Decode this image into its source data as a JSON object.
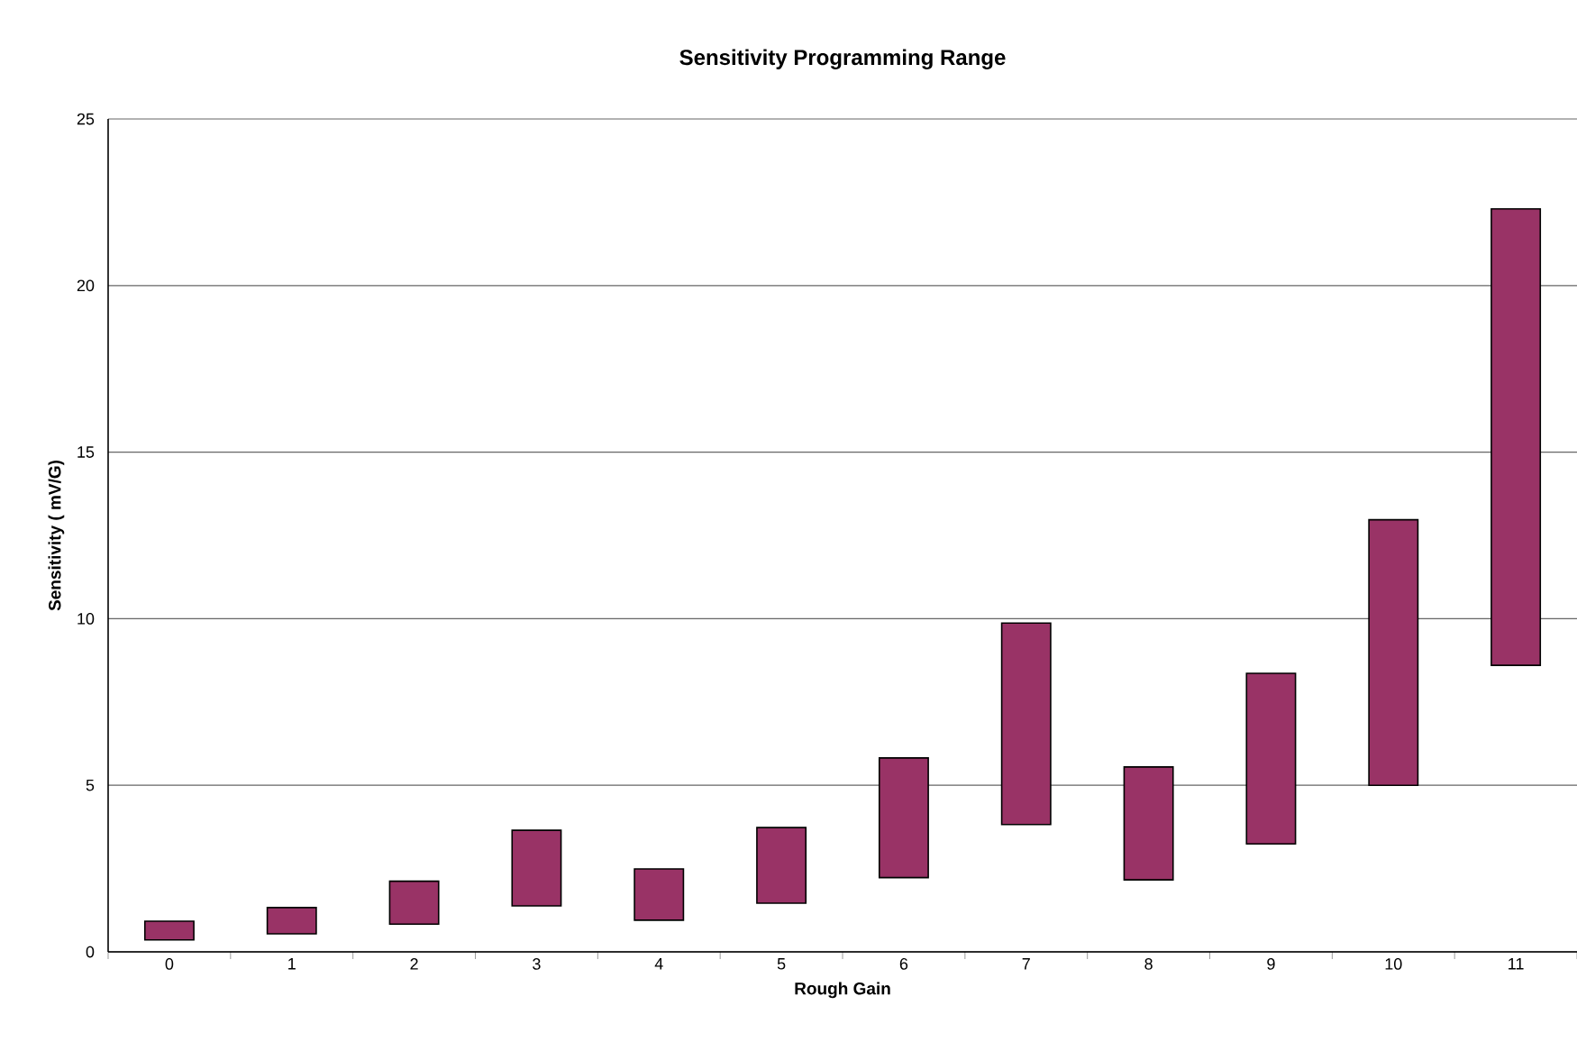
{
  "chart_data": {
    "type": "bar",
    "title": "Sensitivity Programming Range",
    "xlabel": "Rough Gain",
    "ylabel": "Sensitivity ( mV/G)",
    "categories": [
      "0",
      "1",
      "2",
      "3",
      "4",
      "5",
      "6",
      "7",
      "8",
      "9",
      "10",
      "11"
    ],
    "base": [
      0.36,
      0.54,
      0.83,
      1.38,
      0.95,
      1.46,
      2.23,
      3.82,
      2.16,
      3.24,
      5.0,
      8.6
    ],
    "values": [
      0.56,
      0.79,
      1.29,
      2.27,
      1.54,
      2.27,
      3.59,
      6.05,
      3.39,
      5.12,
      7.97,
      13.7
    ],
    "color": "#993366",
    "ylim": [
      0,
      25
    ],
    "yticks": [
      0,
      5,
      10,
      15,
      20,
      25
    ],
    "grid": "y"
  }
}
